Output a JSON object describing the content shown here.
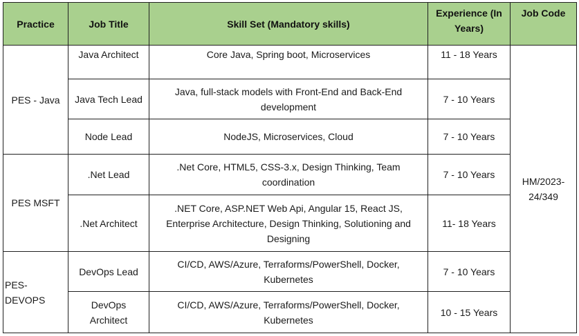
{
  "headers": {
    "practice": "Practice",
    "job_title": "Job Title",
    "skill_set": "Skill Set (Mandatory skills)",
    "experience": "Experience (In Years)",
    "job_code": "Job Code"
  },
  "groups": [
    {
      "practice": "PES - Java"
    },
    {
      "practice": "PES MSFT"
    },
    {
      "practice": "PES- DEVOPS"
    }
  ],
  "rows": [
    {
      "job_title": "Java Architect",
      "skill_set": "Core Java, Spring boot, Microservices",
      "experience": "11 - 18 Years"
    },
    {
      "job_title": "Java Tech Lead",
      "skill_set": "Java, full-stack models with Front-End and Back-End development",
      "experience": "7 - 10 Years"
    },
    {
      "job_title": "Node Lead",
      "skill_set": "NodeJS, Microservices, Cloud",
      "experience": "7 - 10 Years"
    },
    {
      "job_title": ".Net Lead",
      "skill_set": ".Net Core, HTML5, CSS-3.x, Design Thinking, Team coordination",
      "experience": "7 - 10 Years"
    },
    {
      "job_title": ".Net Architect",
      "skill_set": ".NET Core, ASP.NET Web Api, Angular 15, React JS, Enterprise Architecture, Design Thinking, Solutioning and Designing",
      "experience": "11- 18 Years"
    },
    {
      "job_title": "DevOps Lead",
      "skill_set": "CI/CD, AWS/Azure, Terraforms/PowerShell, Docker, Kubernetes",
      "experience": "7 - 10 Years"
    },
    {
      "job_title": "DevOps Architect",
      "skill_set": "CI/CD, AWS/Azure, Terraforms/PowerShell, Docker, Kubernetes",
      "experience": "10 - 15 Years"
    }
  ],
  "job_code": "HM/2023-24/349",
  "colors": {
    "header_bg": "#a9d08e",
    "border": "#1f1f1f"
  }
}
